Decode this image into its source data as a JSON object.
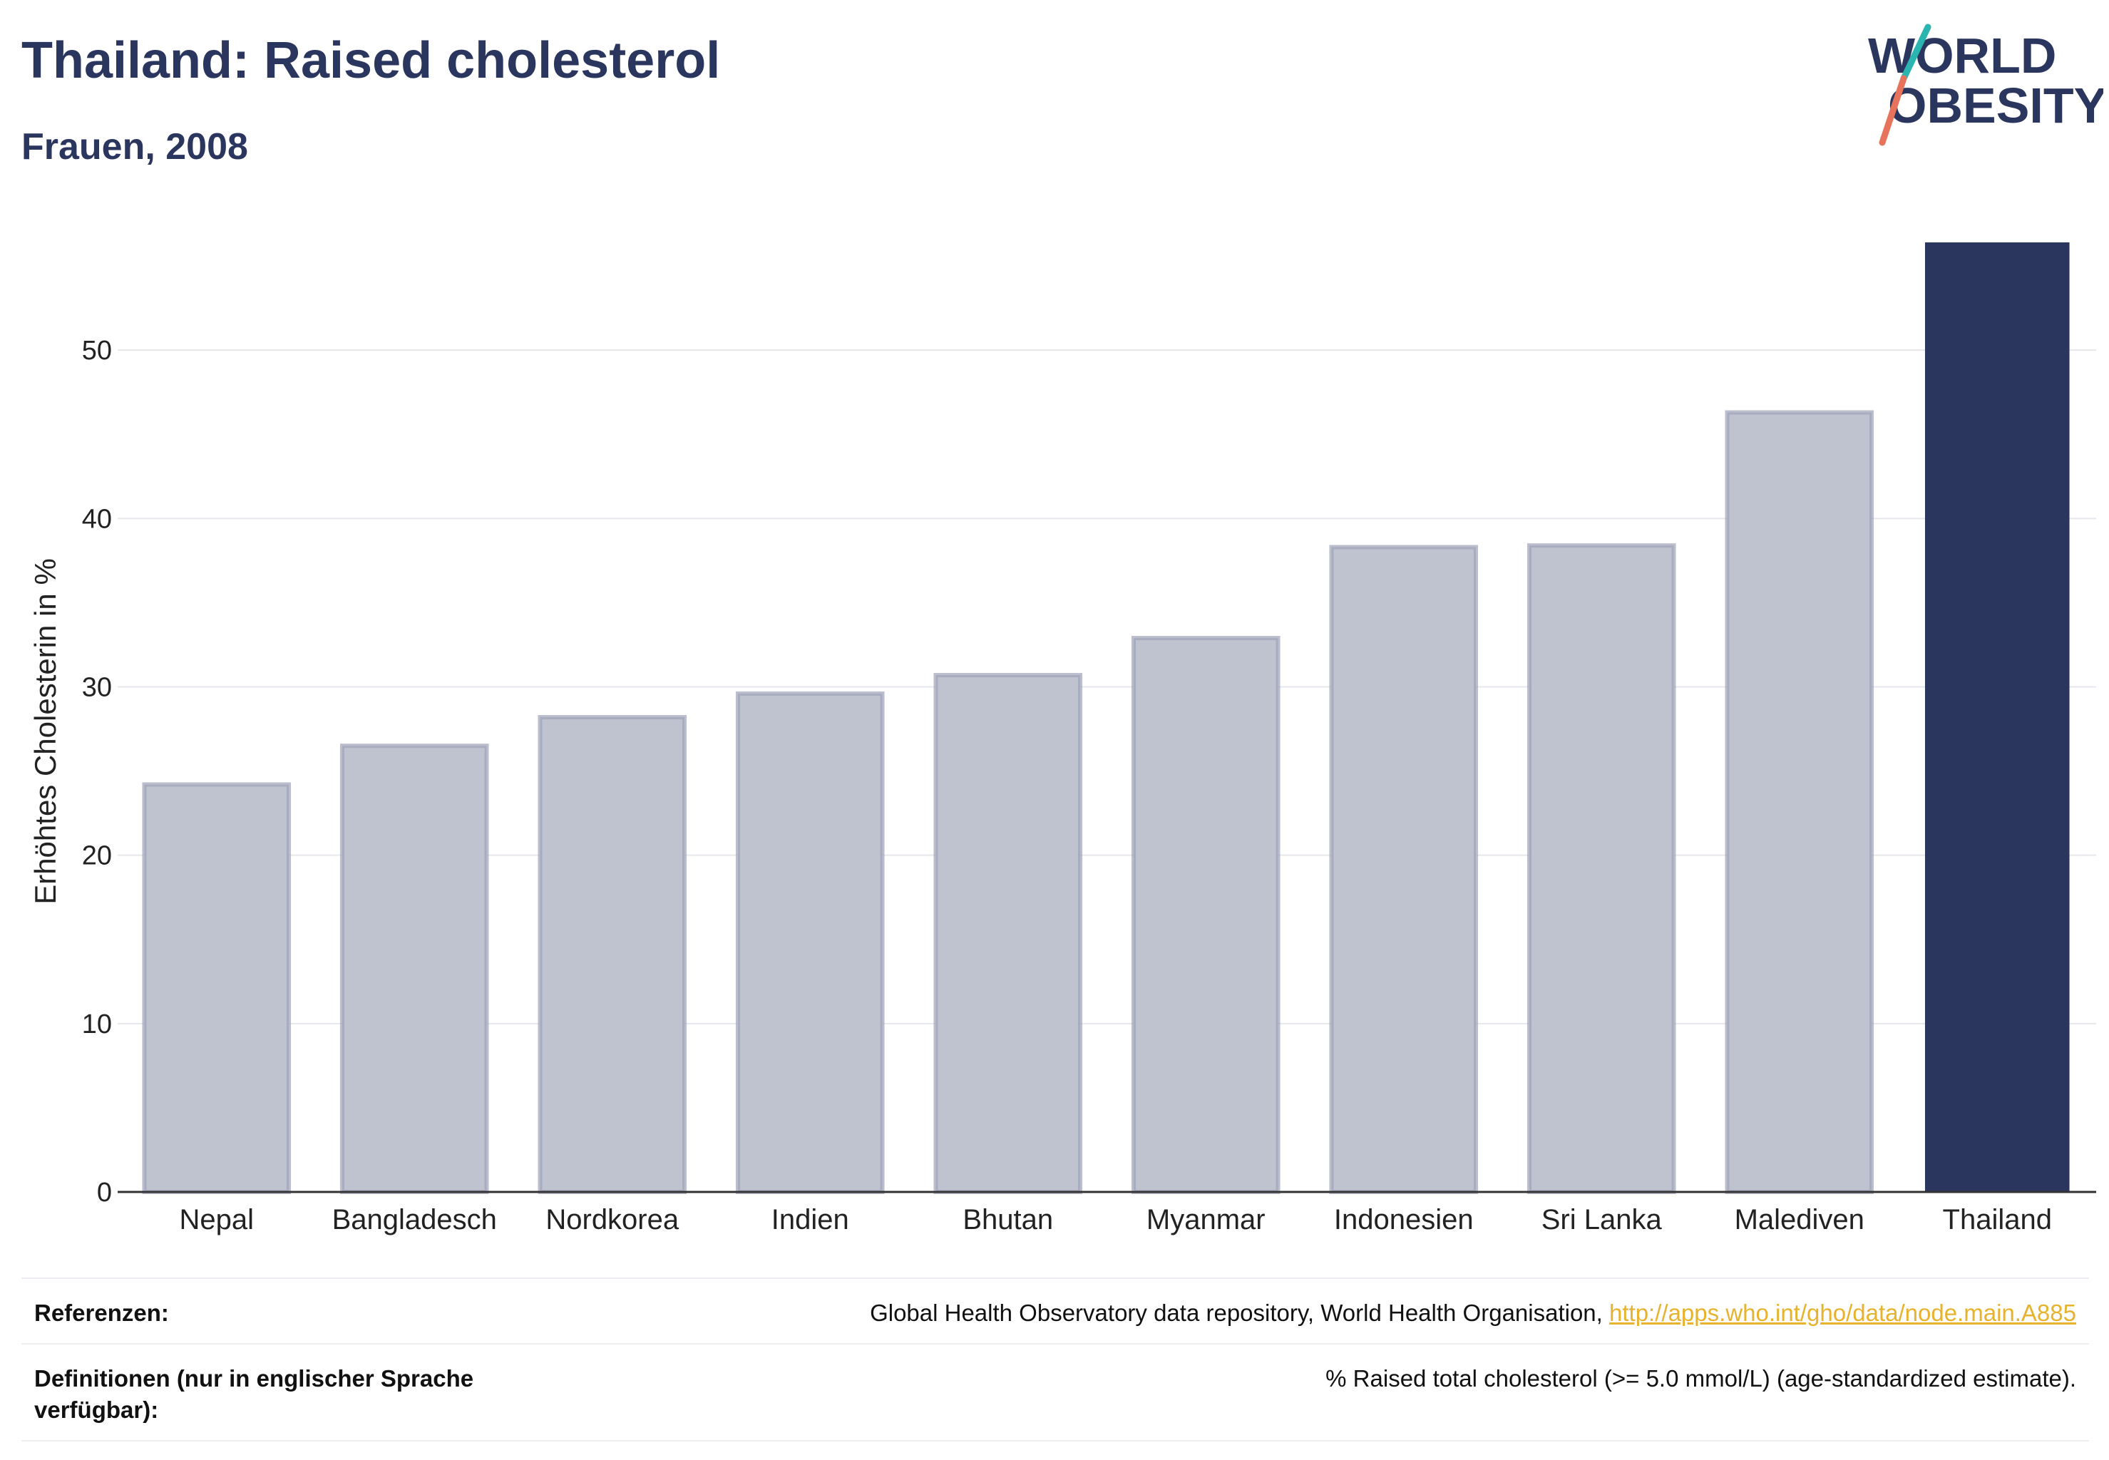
{
  "header": {
    "title": "Thailand: Raised cholesterol",
    "subtitle": "Frauen, 2008"
  },
  "logo": {
    "line1": "WORLD",
    "line2": "OBESITY",
    "colors": {
      "text": "#2b365f",
      "slash_top": "#2bb5b0",
      "slash_bottom": "#e8735c"
    }
  },
  "chart_data": {
    "type": "bar",
    "title": "Thailand: Raised cholesterol",
    "subtitle": "Frauen, 2008",
    "xlabel": "",
    "ylabel": "Erhöhtes Cholesterin in %",
    "categories": [
      "Nepal",
      "Bangladesch",
      "Nordkorea",
      "Indien",
      "Bhutan",
      "Myanmar",
      "Indonesien",
      "Sri Lanka",
      "Malediven",
      "Thailand"
    ],
    "values": [
      24.2,
      26.5,
      28.2,
      29.6,
      30.7,
      32.9,
      38.3,
      38.4,
      46.3,
      56.4
    ],
    "highlight": "Thailand",
    "ylim": [
      0,
      56.4
    ],
    "yticks": [
      0,
      10,
      20,
      30,
      40,
      50
    ],
    "grid": true,
    "colors": {
      "highlight": "#2b365f",
      "others": "#bfc2cf",
      "others_border": "#9ea3b8",
      "grid": "#e6e7ec",
      "axis": "#333333"
    }
  },
  "references": {
    "rows": [
      {
        "label": "Referenzen:",
        "value": "Global Health Observatory data repository, World Health Organisation, ",
        "link": "http://apps.who.int/gho/data/node.main.A885"
      },
      {
        "label": "Definitionen (nur in englischer Sprache verfügbar):",
        "value": "% Raised total cholesterol (>= 5.0 mmol/L) (age-standardized estimate).",
        "link": ""
      }
    ]
  }
}
